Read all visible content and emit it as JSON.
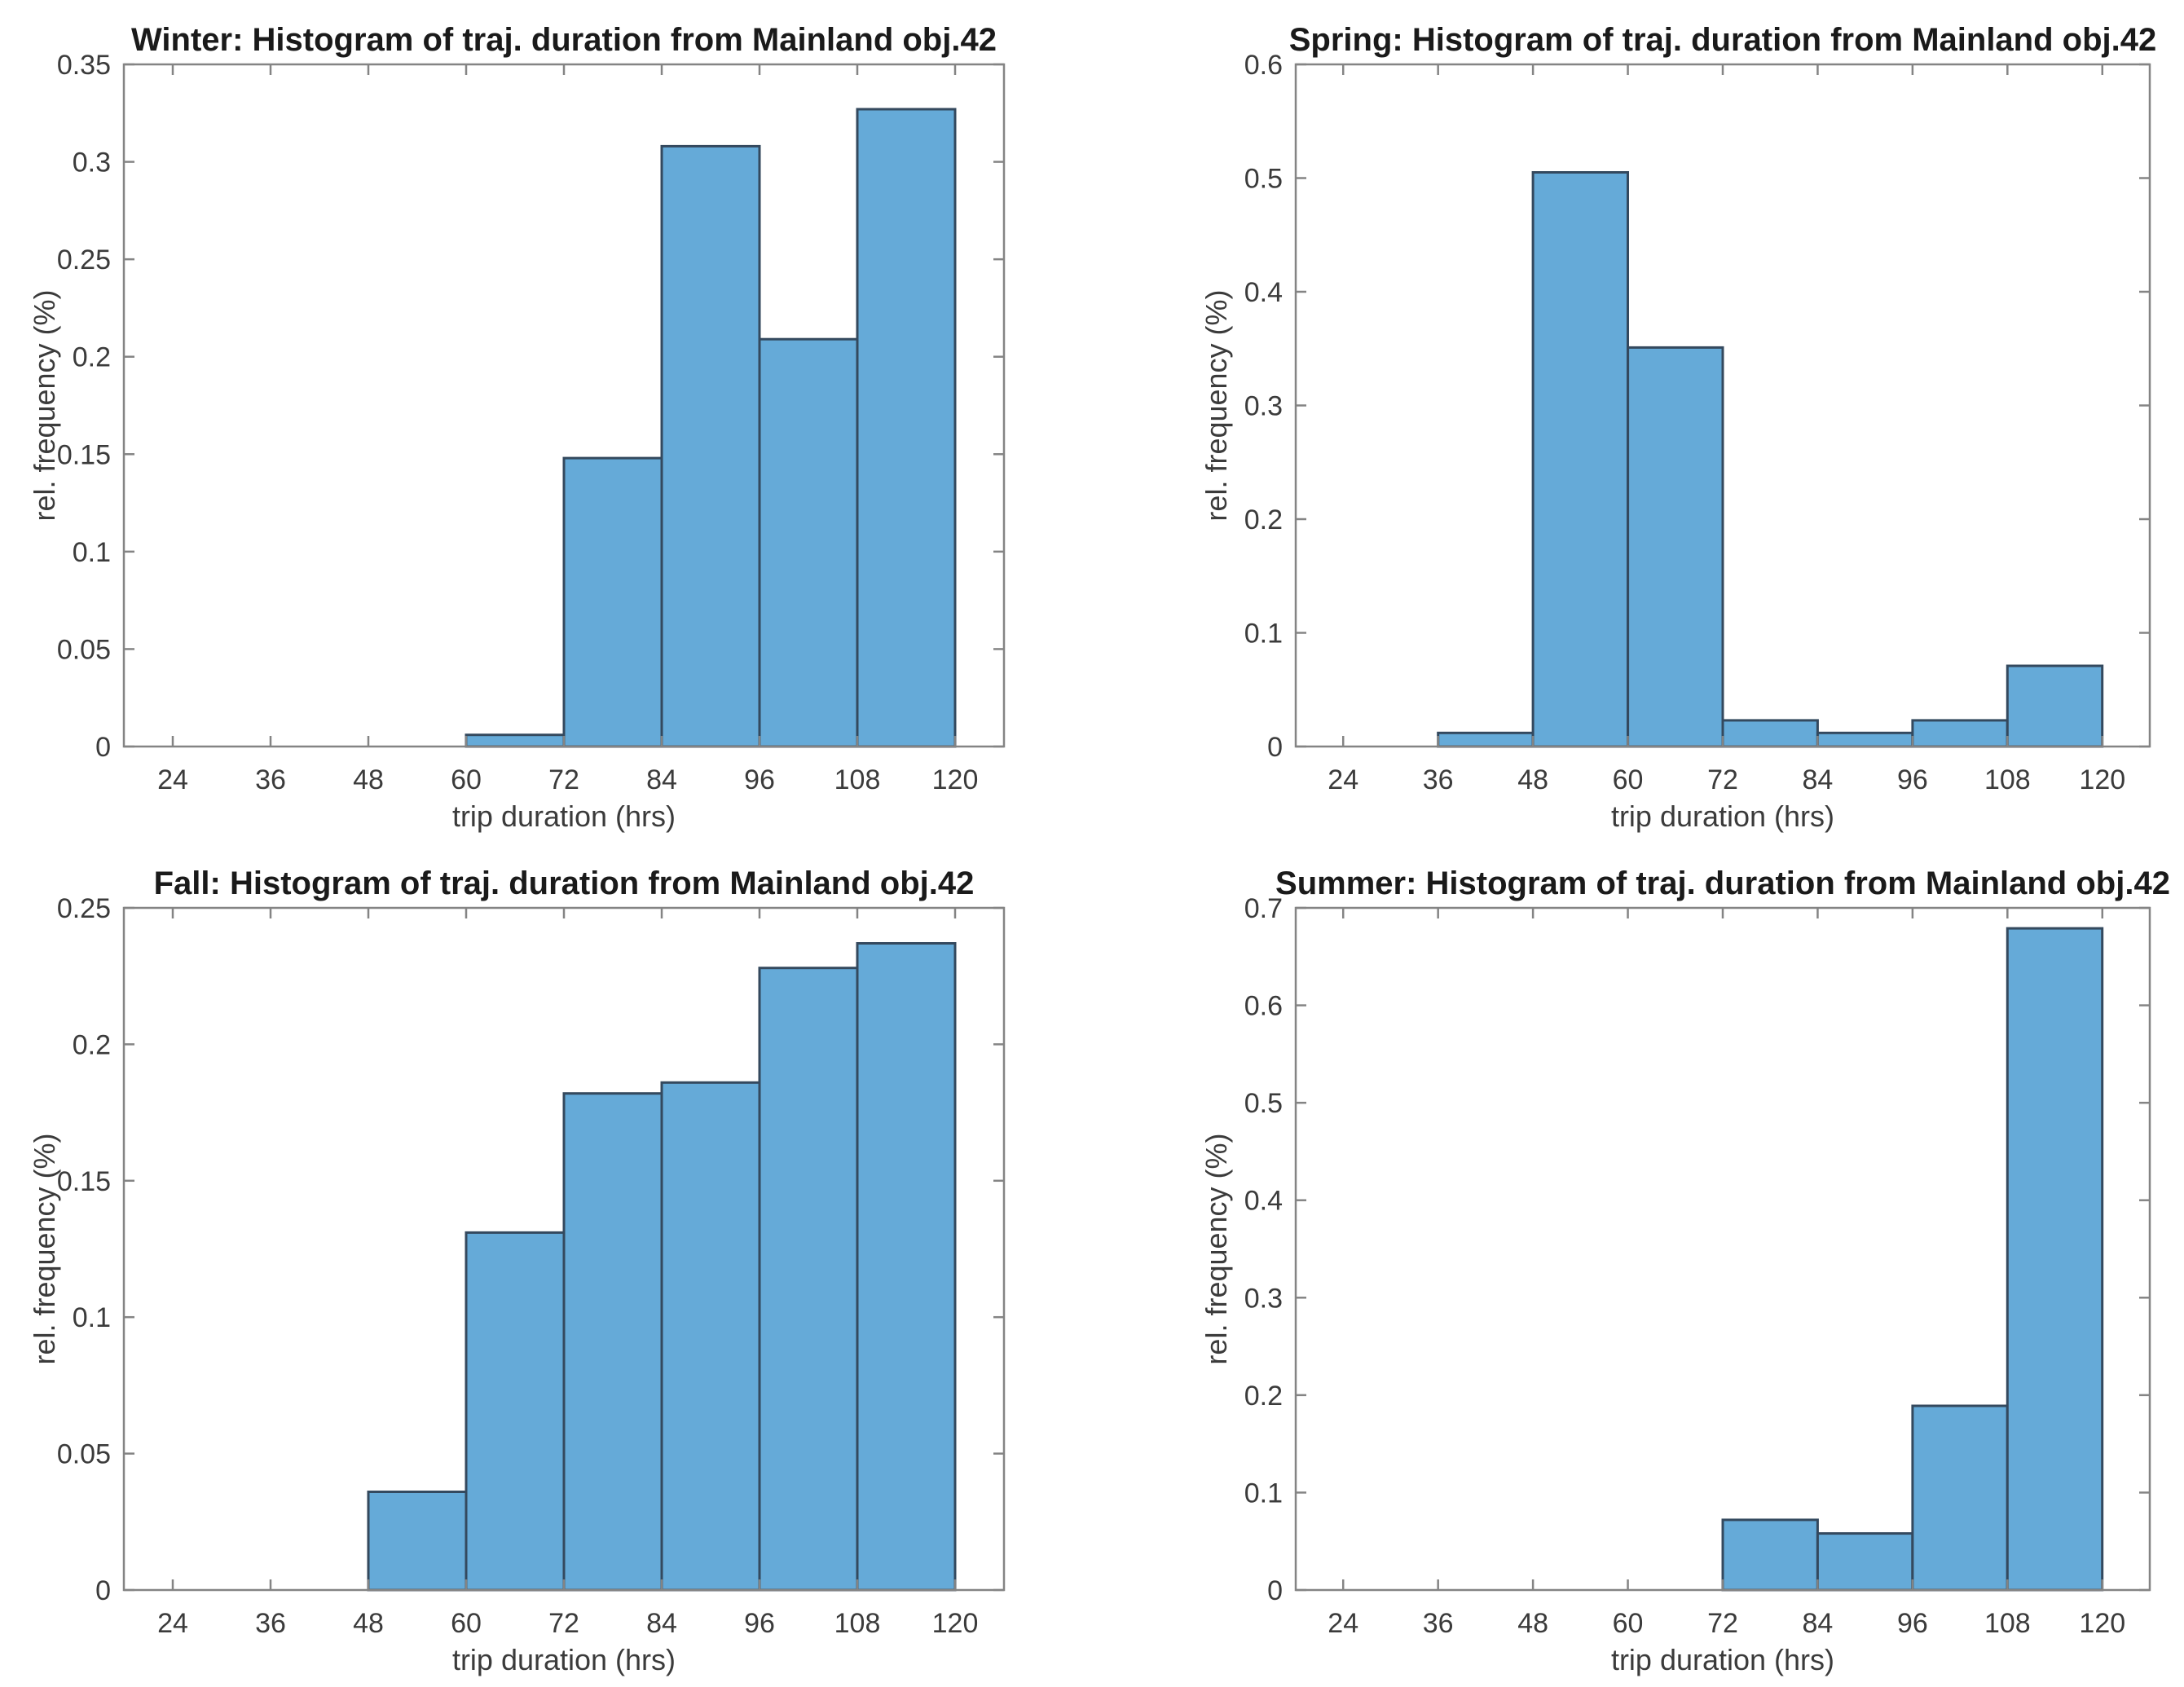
{
  "figure": {
    "background": "#ffffff",
    "colors": {
      "bar_fill": "#65aad8",
      "bar_edge": "#34495e",
      "axis_line": "#848484",
      "tick_text": "#3b3b3b",
      "title_text": "#1a1a1a"
    }
  },
  "chart_data": [
    {
      "type": "bar",
      "season": "Winter",
      "position": "top-left",
      "title": "Winter: Histogram of traj. duration from Mainland obj.42",
      "xlabel": "trip duration (hrs)",
      "ylabel": "rel. frequency (%)",
      "xlim": [
        18,
        126
      ],
      "ylim": [
        0,
        0.35
      ],
      "xticks": [
        "24",
        "36",
        "48",
        "60",
        "72",
        "84",
        "96",
        "108",
        "120"
      ],
      "yticks": [
        "0",
        "0.05",
        "0.1",
        "0.15",
        "0.2",
        "0.25",
        "0.3",
        "0.35"
      ],
      "bin_width_hrs": 12,
      "bin_edges": [
        60,
        72,
        84,
        96,
        108,
        120
      ],
      "values": [
        0.006,
        0.148,
        0.308,
        0.209,
        0.327
      ],
      "grid": false,
      "legend": null
    },
    {
      "type": "bar",
      "season": "Spring",
      "position": "top-right",
      "title": "Spring: Histogram of traj. duration from Mainland obj.42",
      "xlabel": "trip duration (hrs)",
      "ylabel": "rel. frequency (%)",
      "xlim": [
        18,
        126
      ],
      "ylim": [
        0,
        0.6
      ],
      "xticks": [
        "24",
        "36",
        "48",
        "60",
        "72",
        "84",
        "96",
        "108",
        "120"
      ],
      "yticks": [
        "0",
        "0.1",
        "0.2",
        "0.3",
        "0.4",
        "0.5",
        "0.6"
      ],
      "bin_width_hrs": 12,
      "bin_edges": [
        36,
        48,
        60,
        72,
        84,
        96,
        108,
        120
      ],
      "values": [
        0.012,
        0.505,
        0.351,
        0.023,
        0.012,
        0.023,
        0.071
      ],
      "grid": false,
      "legend": null
    },
    {
      "type": "bar",
      "season": "Fall",
      "position": "bottom-left",
      "title": "Fall: Histogram of traj. duration from Mainland obj.42",
      "xlabel": "trip duration (hrs)",
      "ylabel": "rel. frequency (%)",
      "xlim": [
        18,
        126
      ],
      "ylim": [
        0,
        0.25
      ],
      "xticks": [
        "24",
        "36",
        "48",
        "60",
        "72",
        "84",
        "96",
        "108",
        "120"
      ],
      "yticks": [
        "0",
        "0.05",
        "0.1",
        "0.15",
        "0.2",
        "0.25"
      ],
      "bin_width_hrs": 12,
      "bin_edges": [
        48,
        60,
        72,
        84,
        96,
        108,
        120
      ],
      "values": [
        0.036,
        0.131,
        0.182,
        0.186,
        0.228,
        0.237
      ],
      "grid": false,
      "legend": null
    },
    {
      "type": "bar",
      "season": "Summer",
      "position": "bottom-right",
      "title": "Summer: Histogram of traj. duration from Mainland obj.42",
      "xlabel": "trip duration (hrs)",
      "ylabel": "rel. frequency (%)",
      "xlim": [
        18,
        126
      ],
      "ylim": [
        0,
        0.7
      ],
      "xticks": [
        "24",
        "36",
        "48",
        "60",
        "72",
        "84",
        "96",
        "108",
        "120"
      ],
      "yticks": [
        "0",
        "0.1",
        "0.2",
        "0.3",
        "0.4",
        "0.5",
        "0.6",
        "0.7"
      ],
      "bin_width_hrs": 12,
      "bin_edges": [
        72,
        84,
        96,
        108,
        120
      ],
      "values": [
        0.072,
        0.058,
        0.189,
        0.679
      ],
      "grid": false,
      "legend": null
    }
  ]
}
